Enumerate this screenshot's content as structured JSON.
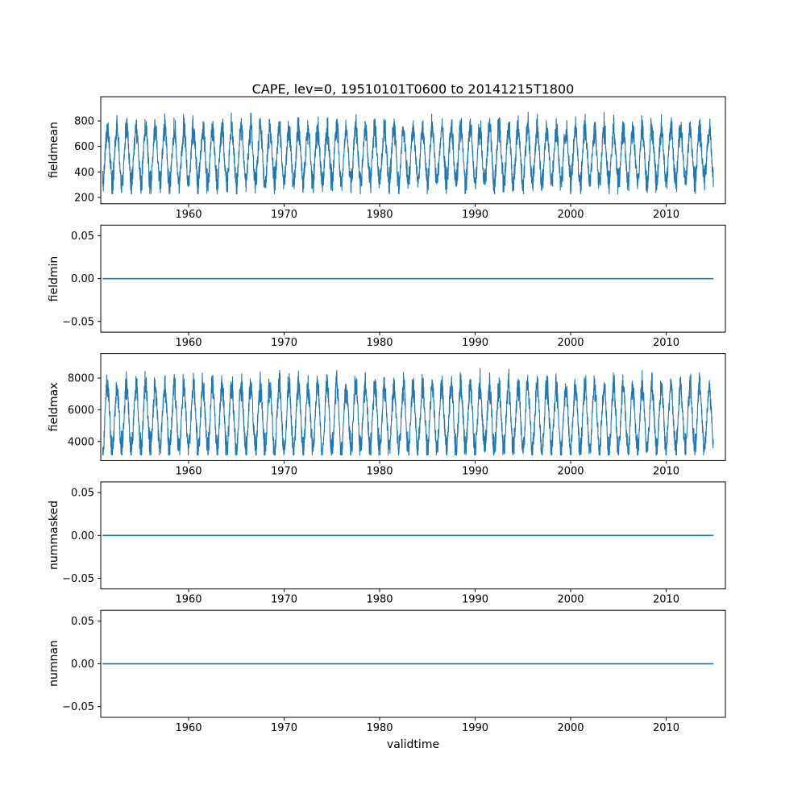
{
  "figure": {
    "title": "CAPE, lev=0, 19510101T0600 to 20141215T1800",
    "xlabel": "validtime",
    "line_color": "#1f77b4",
    "axis_color": "#000000",
    "background": "#ffffff"
  },
  "chart_data": [
    {
      "type": "line",
      "name": "fieldmean",
      "ylabel": "fieldmean",
      "x_range": [
        1951.0,
        2014.96
      ],
      "xlim": [
        1950.8,
        2016.2
      ],
      "ylim": [
        150,
        990
      ],
      "xticks": [
        {
          "v": 1960,
          "label": "1960"
        },
        {
          "v": 1970,
          "label": "1970"
        },
        {
          "v": 1980,
          "label": "1980"
        },
        {
          "v": 1990,
          "label": "1990"
        },
        {
          "v": 2000,
          "label": "2000"
        },
        {
          "v": 2010,
          "label": "2010"
        }
      ],
      "yticks": [
        {
          "v": 200,
          "label": "200"
        },
        {
          "v": 400,
          "label": "400"
        },
        {
          "v": 600,
          "label": "600"
        },
        {
          "v": 800,
          "label": "800"
        }
      ],
      "legend": "none",
      "grid": false,
      "series": {
        "kind": "seasonal",
        "base": 530,
        "annual_amplitude": 215,
        "amplitude_jitter": 0.35,
        "noise": 65,
        "clamp": [
          228,
          952
        ],
        "points_per_year": 60,
        "seed": 11
      }
    },
    {
      "type": "line",
      "name": "fieldmin",
      "ylabel": "fieldmin",
      "x_range": [
        1951.0,
        2014.96
      ],
      "xlim": [
        1950.8,
        2016.2
      ],
      "ylim": [
        -0.0625,
        0.0625
      ],
      "xticks": [
        {
          "v": 1960,
          "label": "1960"
        },
        {
          "v": 1970,
          "label": "1970"
        },
        {
          "v": 1980,
          "label": "1980"
        },
        {
          "v": 1990,
          "label": "1990"
        },
        {
          "v": 2000,
          "label": "2000"
        },
        {
          "v": 2010,
          "label": "2010"
        }
      ],
      "yticks": [
        {
          "v": -0.05,
          "label": "−0.05"
        },
        {
          "v": 0,
          "label": "0.00"
        },
        {
          "v": 0.05,
          "label": "0.05"
        }
      ],
      "legend": "none",
      "grid": false,
      "series": {
        "kind": "constant",
        "value": 0
      }
    },
    {
      "type": "line",
      "name": "fieldmax",
      "ylabel": "fieldmax",
      "x_range": [
        1951.0,
        2014.96
      ],
      "xlim": [
        1950.8,
        2016.2
      ],
      "ylim": [
        2800,
        9550
      ],
      "xticks": [
        {
          "v": 1960,
          "label": "1960"
        },
        {
          "v": 1970,
          "label": "1970"
        },
        {
          "v": 1980,
          "label": "1980"
        },
        {
          "v": 1990,
          "label": "1990"
        },
        {
          "v": 2000,
          "label": "2000"
        },
        {
          "v": 2010,
          "label": "2010"
        }
      ],
      "yticks": [
        {
          "v": 4000,
          "label": "4000"
        },
        {
          "v": 6000,
          "label": "6000"
        },
        {
          "v": 8000,
          "label": "8000"
        }
      ],
      "legend": "none",
      "grid": false,
      "series": {
        "kind": "seasonal",
        "base": 5500,
        "annual_amplitude": 2000,
        "amplitude_jitter": 0.35,
        "noise": 480,
        "clamp": [
          3150,
          9250
        ],
        "points_per_year": 60,
        "seed": 23
      }
    },
    {
      "type": "line",
      "name": "nummasked",
      "ylabel": "nummasked",
      "x_range": [
        1951.0,
        2014.96
      ],
      "xlim": [
        1950.8,
        2016.2
      ],
      "ylim": [
        -0.0625,
        0.0625
      ],
      "xticks": [
        {
          "v": 1960,
          "label": "1960"
        },
        {
          "v": 1970,
          "label": "1970"
        },
        {
          "v": 1980,
          "label": "1980"
        },
        {
          "v": 1990,
          "label": "1990"
        },
        {
          "v": 2000,
          "label": "2000"
        },
        {
          "v": 2010,
          "label": "2010"
        }
      ],
      "yticks": [
        {
          "v": -0.05,
          "label": "−0.05"
        },
        {
          "v": 0,
          "label": "0.00"
        },
        {
          "v": 0.05,
          "label": "0.05"
        }
      ],
      "legend": "none",
      "grid": false,
      "series": {
        "kind": "constant",
        "value": 0
      }
    },
    {
      "type": "line",
      "name": "numnan",
      "ylabel": "numnan",
      "x_range": [
        1951.0,
        2014.96
      ],
      "xlim": [
        1950.8,
        2016.2
      ],
      "ylim": [
        -0.0625,
        0.0625
      ],
      "xticks": [
        {
          "v": 1960,
          "label": "1960"
        },
        {
          "v": 1970,
          "label": "1970"
        },
        {
          "v": 1980,
          "label": "1980"
        },
        {
          "v": 1990,
          "label": "1990"
        },
        {
          "v": 2000,
          "label": "2000"
        },
        {
          "v": 2010,
          "label": "2010"
        }
      ],
      "yticks": [
        {
          "v": -0.05,
          "label": "−0.05"
        },
        {
          "v": 0,
          "label": "0.00"
        },
        {
          "v": 0.05,
          "label": "0.05"
        }
      ],
      "legend": "none",
      "grid": false,
      "series": {
        "kind": "constant",
        "value": 0
      }
    }
  ]
}
